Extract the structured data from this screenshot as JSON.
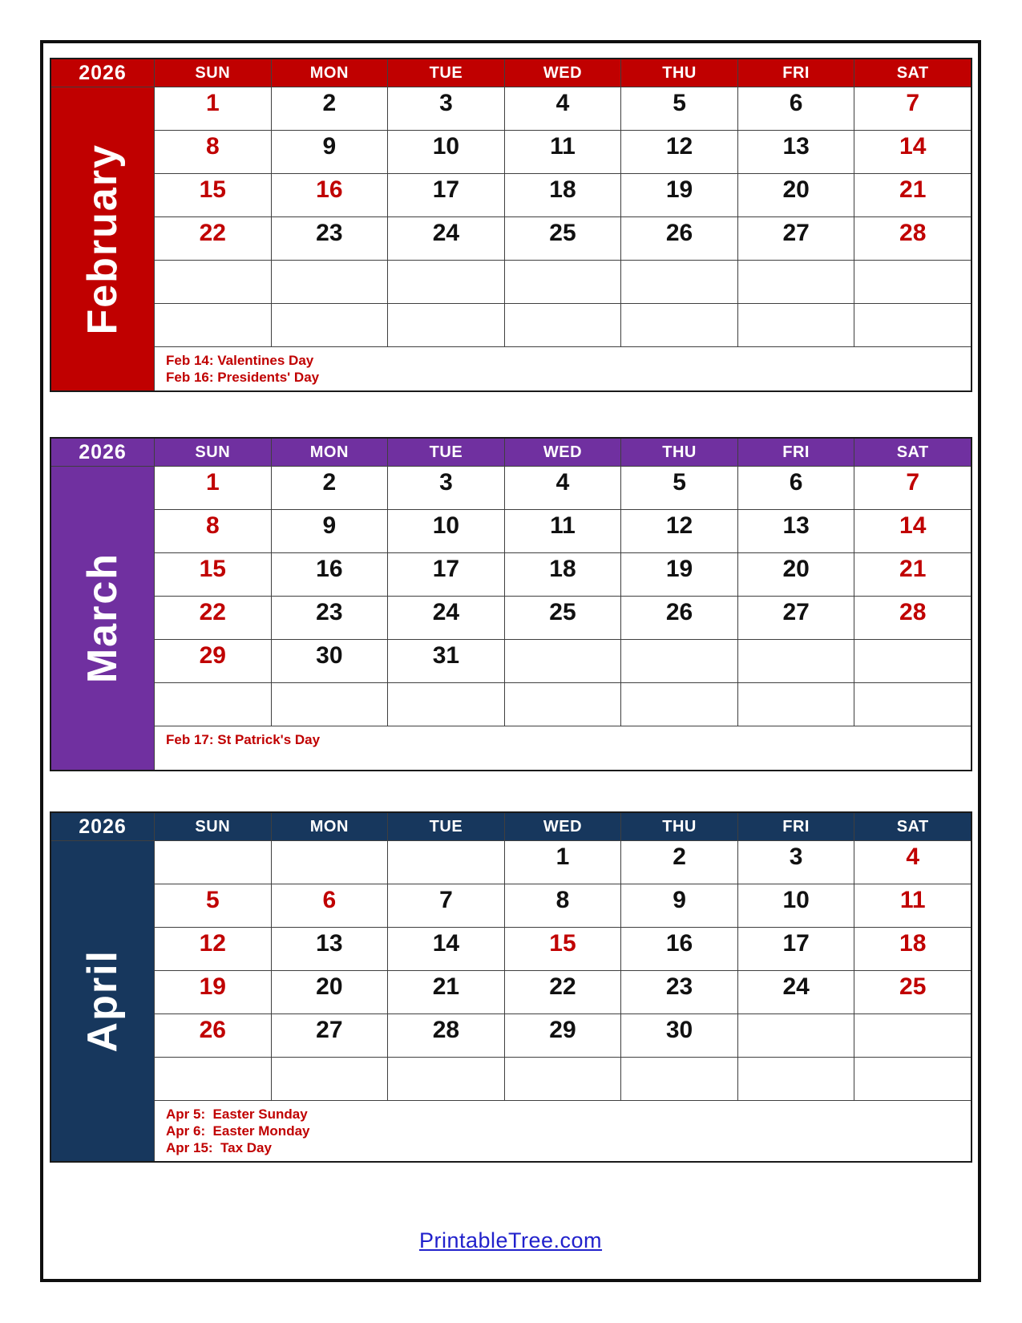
{
  "calendar": {
    "year": "2026",
    "weekdays": [
      "SUN",
      "MON",
      "TUE",
      "WED",
      "THU",
      "FRI",
      "SAT"
    ],
    "months": [
      {
        "name": "February",
        "accent": "#C00000",
        "rows": [
          [
            1,
            2,
            3,
            4,
            5,
            6,
            7
          ],
          [
            8,
            9,
            10,
            11,
            12,
            13,
            14
          ],
          [
            15,
            16,
            17,
            18,
            19,
            20,
            21
          ],
          [
            22,
            23,
            24,
            25,
            26,
            27,
            28
          ],
          [
            null,
            null,
            null,
            null,
            null,
            null,
            null
          ],
          [
            null,
            null,
            null,
            null,
            null,
            null,
            null
          ]
        ],
        "red_days": [
          1,
          7,
          8,
          14,
          15,
          16,
          21,
          22,
          28
        ],
        "notes": [
          "Feb 14: Valentines Day",
          "Feb 16: Presidents' Day"
        ]
      },
      {
        "name": "March",
        "accent": "#7030A0",
        "rows": [
          [
            1,
            2,
            3,
            4,
            5,
            6,
            7
          ],
          [
            8,
            9,
            10,
            11,
            12,
            13,
            14
          ],
          [
            15,
            16,
            17,
            18,
            19,
            20,
            21
          ],
          [
            22,
            23,
            24,
            25,
            26,
            27,
            28
          ],
          [
            29,
            30,
            31,
            null,
            null,
            null,
            null
          ],
          [
            null,
            null,
            null,
            null,
            null,
            null,
            null
          ]
        ],
        "red_days": [
          1,
          7,
          8,
          14,
          15,
          21,
          22,
          28,
          29
        ],
        "notes": [
          "Feb 17: St Patrick's Day"
        ]
      },
      {
        "name": "April",
        "accent": "#17375D",
        "rows": [
          [
            null,
            null,
            null,
            1,
            2,
            3,
            4
          ],
          [
            5,
            6,
            7,
            8,
            9,
            10,
            11
          ],
          [
            12,
            13,
            14,
            15,
            16,
            17,
            18
          ],
          [
            19,
            20,
            21,
            22,
            23,
            24,
            25
          ],
          [
            26,
            27,
            28,
            29,
            30,
            null,
            null
          ],
          [
            null,
            null,
            null,
            null,
            null,
            null,
            null
          ]
        ],
        "red_days": [
          4,
          5,
          6,
          11,
          12,
          15,
          18,
          19,
          25,
          26
        ],
        "notes": [
          "Apr 5:  Easter Sunday",
          "Apr 6:  Easter Monday",
          "Apr 15:  Tax Day"
        ]
      }
    ]
  },
  "footer": {
    "link_label": "PrintableTree.com"
  },
  "colors": {
    "february_accent": "#C00000",
    "march_accent": "#7030A0",
    "april_accent": "#17375D",
    "weekend_holiday_date": "#C00000",
    "weekday_date": "#111111",
    "note_text": "#C00000",
    "link_text": "#2121CC"
  }
}
